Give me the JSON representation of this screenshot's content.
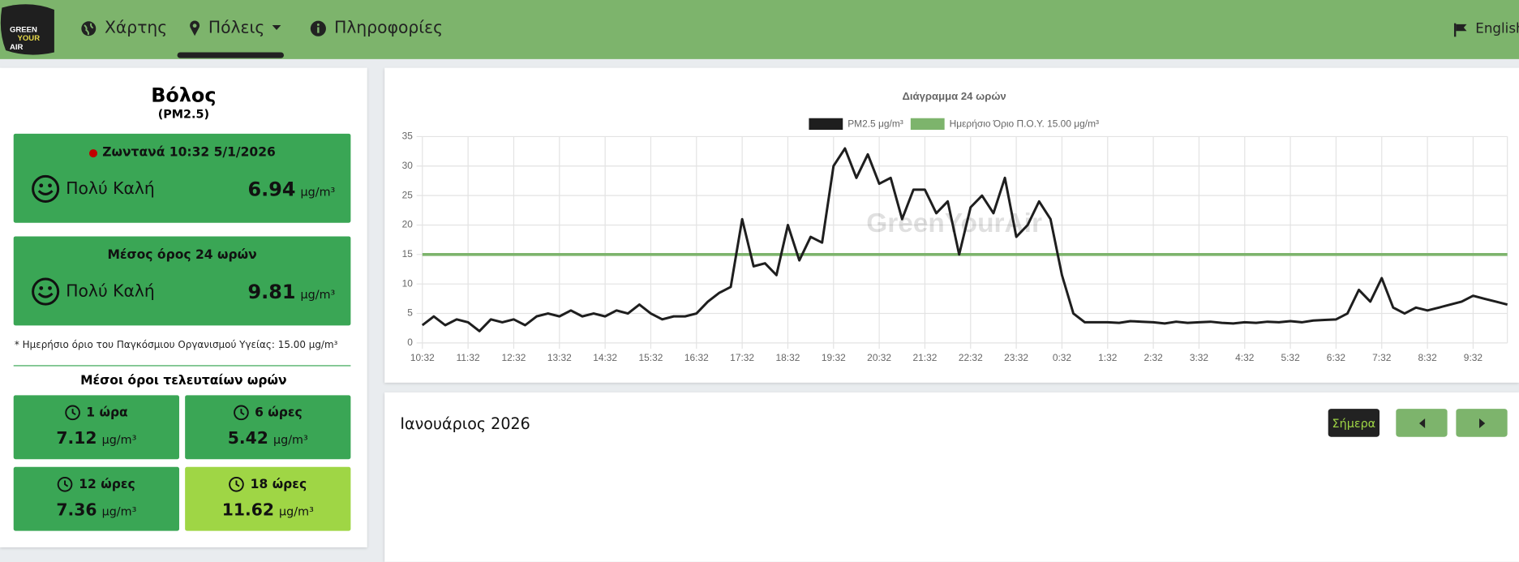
{
  "header": {
    "logo": [
      "GREEN",
      "YOUR",
      "AIR"
    ],
    "nav": [
      {
        "label": "Χάρτης"
      },
      {
        "label": "Πόλεις"
      },
      {
        "label": "Πληροφορίες"
      }
    ],
    "language": "English"
  },
  "city": {
    "name": "Βόλος",
    "pollutant": "(PM2.5)"
  },
  "unit": "μg/m³",
  "live": {
    "label": "Ζωντανά 10:32 5/1/2026",
    "status": "Πολύ Καλή",
    "value": 6.94
  },
  "daily": {
    "label": "Μέσος όρος 24 ωρών",
    "status": "Πολύ Καλή",
    "value": 9.81
  },
  "note": "* Ημερήσιο όριο του Παγκόσμιου Οργανισμού Υγείας: 15.00 μg/m³",
  "recent": {
    "title": "Μέσοι όροι τελευταίων ωρών",
    "items": [
      {
        "label": "1 ώρα",
        "value": 7.12
      },
      {
        "label": "6 ώρες",
        "value": 5.42
      },
      {
        "label": "12 ώρες",
        "value": 7.36
      },
      {
        "label": "18 ώρες",
        "value": 11.62
      }
    ]
  },
  "chart_data": {
    "type": "line",
    "title": "Διάγραμμα 24 ωρών",
    "watermark": "GreenYourAir",
    "categories": [
      "10:32",
      null,
      null,
      null,
      "11:32",
      null,
      null,
      null,
      "12:32",
      null,
      null,
      null,
      "13:32",
      null,
      null,
      null,
      "14:32",
      null,
      null,
      null,
      "15:32",
      null,
      null,
      null,
      "16:32",
      null,
      null,
      null,
      "17:32",
      null,
      null,
      null,
      "18:32",
      null,
      null,
      null,
      "19:32",
      null,
      null,
      null,
      "20:32",
      null,
      null,
      null,
      "21:32",
      null,
      null,
      null,
      "22:32",
      null,
      null,
      null,
      "23:32",
      null,
      null,
      null,
      "0:32",
      null,
      null,
      null,
      "1:32",
      null,
      null,
      null,
      "2:32",
      null,
      null,
      null,
      "3:32",
      null,
      null,
      null,
      "4:32",
      null,
      null,
      null,
      "5:32",
      null,
      null,
      null,
      "6:32",
      null,
      null,
      null,
      "7:32",
      null,
      null,
      null,
      "8:32",
      null,
      null,
      null,
      "9:32",
      null,
      null,
      null
    ],
    "series": [
      {
        "name": "PM2.5 μg/m³",
        "color": "#1e1e1e",
        "values": [
          3,
          4.5,
          3,
          4,
          3.5,
          2,
          4,
          3.5,
          4,
          3,
          4.5,
          5,
          4.5,
          5.5,
          4.5,
          5,
          4.5,
          5.5,
          5,
          6.5,
          5,
          4,
          4.5,
          4.5,
          5,
          7,
          8.5,
          9.5,
          21,
          13,
          13.5,
          11.5,
          20,
          14,
          18,
          17,
          30,
          33,
          28,
          32,
          27,
          28,
          21,
          26,
          26,
          22,
          24,
          15,
          23,
          25,
          22,
          28,
          18,
          20,
          24,
          21,
          11.5,
          5,
          3.5,
          3.5,
          3.5,
          3.4,
          3.7,
          3.6,
          3.5,
          3.3,
          3.6,
          3.4,
          3.5,
          3.6,
          3.4,
          3.3,
          3.5,
          3.4,
          3.6,
          3.5,
          3.7,
          3.5,
          3.8,
          3.9,
          4,
          5,
          9,
          7,
          11,
          6,
          5,
          6,
          5.5,
          6,
          6.5,
          7,
          8,
          7.5,
          7,
          6.5
        ]
      }
    ],
    "reference": {
      "name": "Ημερήσιο Όριο Π.Ο.Υ. 15.00 μg/m³",
      "color": "#7db46c",
      "value": 15
    },
    "ylim": [
      0,
      35
    ],
    "yticks": [
      0,
      5,
      10,
      15,
      20,
      25,
      30,
      35
    ],
    "grid": true
  },
  "calendar": {
    "month": "Ιανουάριος 2026",
    "today": "Σήμερα"
  }
}
